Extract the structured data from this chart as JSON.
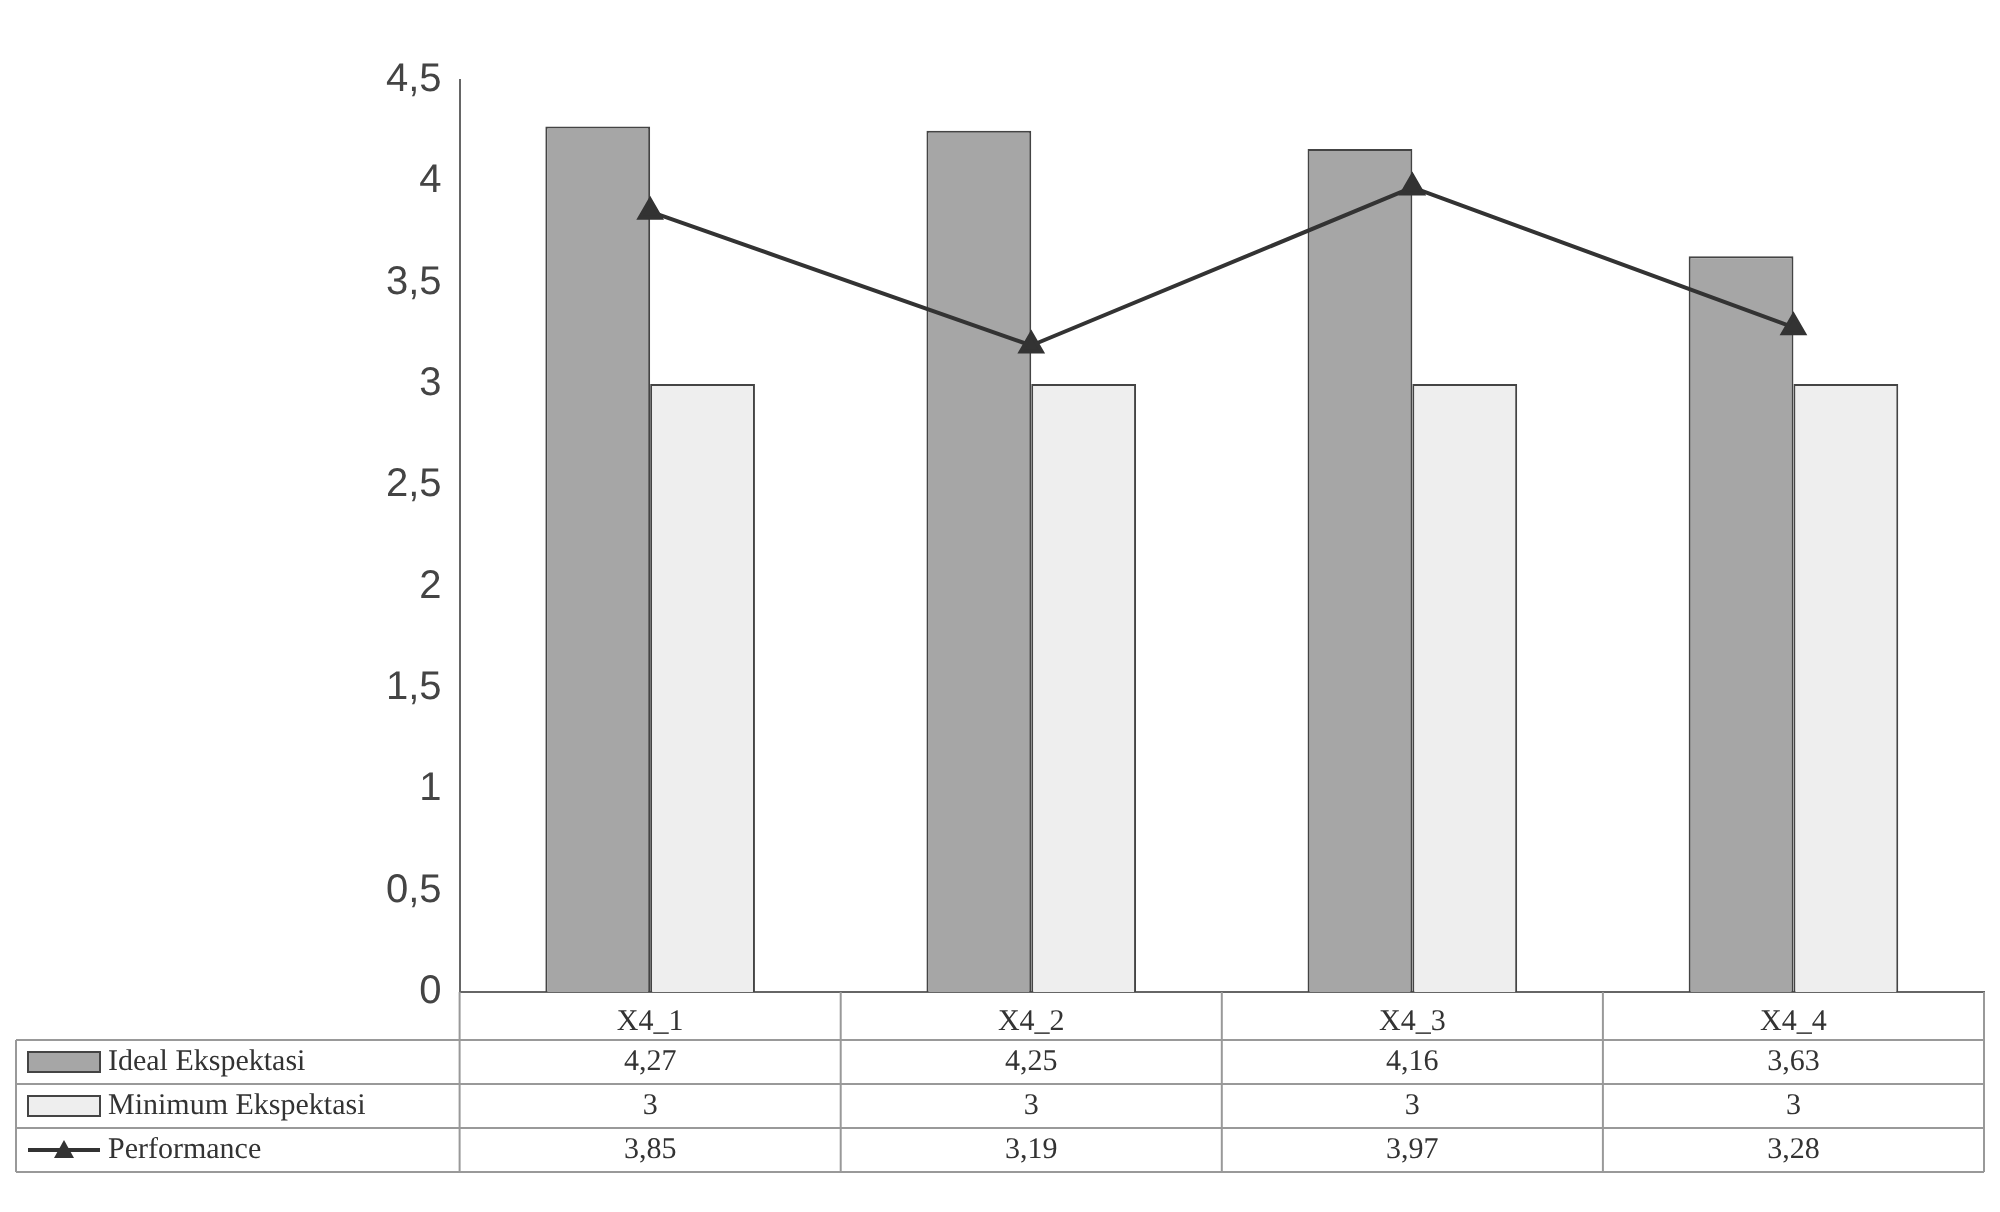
{
  "chart_data": {
    "type": "bar",
    "categories": [
      "X4_1",
      "X4_2",
      "X4_3",
      "X4_4"
    ],
    "series": [
      {
        "name": "Ideal Ekspektasi",
        "color": "#a6a6a6",
        "values": [
          4.27,
          4.25,
          4.16,
          3.63
        ],
        "value_labels": [
          "4,27",
          "4,25",
          "4,16",
          "3,63"
        ]
      },
      {
        "name": "Minimum Ekspektasi",
        "color": "#eeeeee",
        "values": [
          3,
          3,
          3,
          3
        ],
        "value_labels": [
          "3",
          "3",
          "3",
          "3"
        ]
      },
      {
        "name": "Performance",
        "type": "line",
        "color": "#333333",
        "values": [
          3.85,
          3.19,
          3.97,
          3.28
        ],
        "value_labels": [
          "3,85",
          "3,19",
          "3,97",
          "3,28"
        ],
        "marker": "triangle"
      }
    ],
    "ylim": [
      0,
      4.5
    ],
    "yticks": [
      {
        "value": 0,
        "label": "0"
      },
      {
        "value": 0.5,
        "label": "0,5"
      },
      {
        "value": 1,
        "label": "1"
      },
      {
        "value": 1.5,
        "label": "1,5"
      },
      {
        "value": 2,
        "label": "2"
      },
      {
        "value": 2.5,
        "label": "2,5"
      },
      {
        "value": 3,
        "label": "3"
      },
      {
        "value": 3.5,
        "label": "3,5"
      },
      {
        "value": 4,
        "label": "4"
      },
      {
        "value": 4.5,
        "label": "4,5"
      }
    ],
    "grid": false,
    "legend": "bottom"
  }
}
